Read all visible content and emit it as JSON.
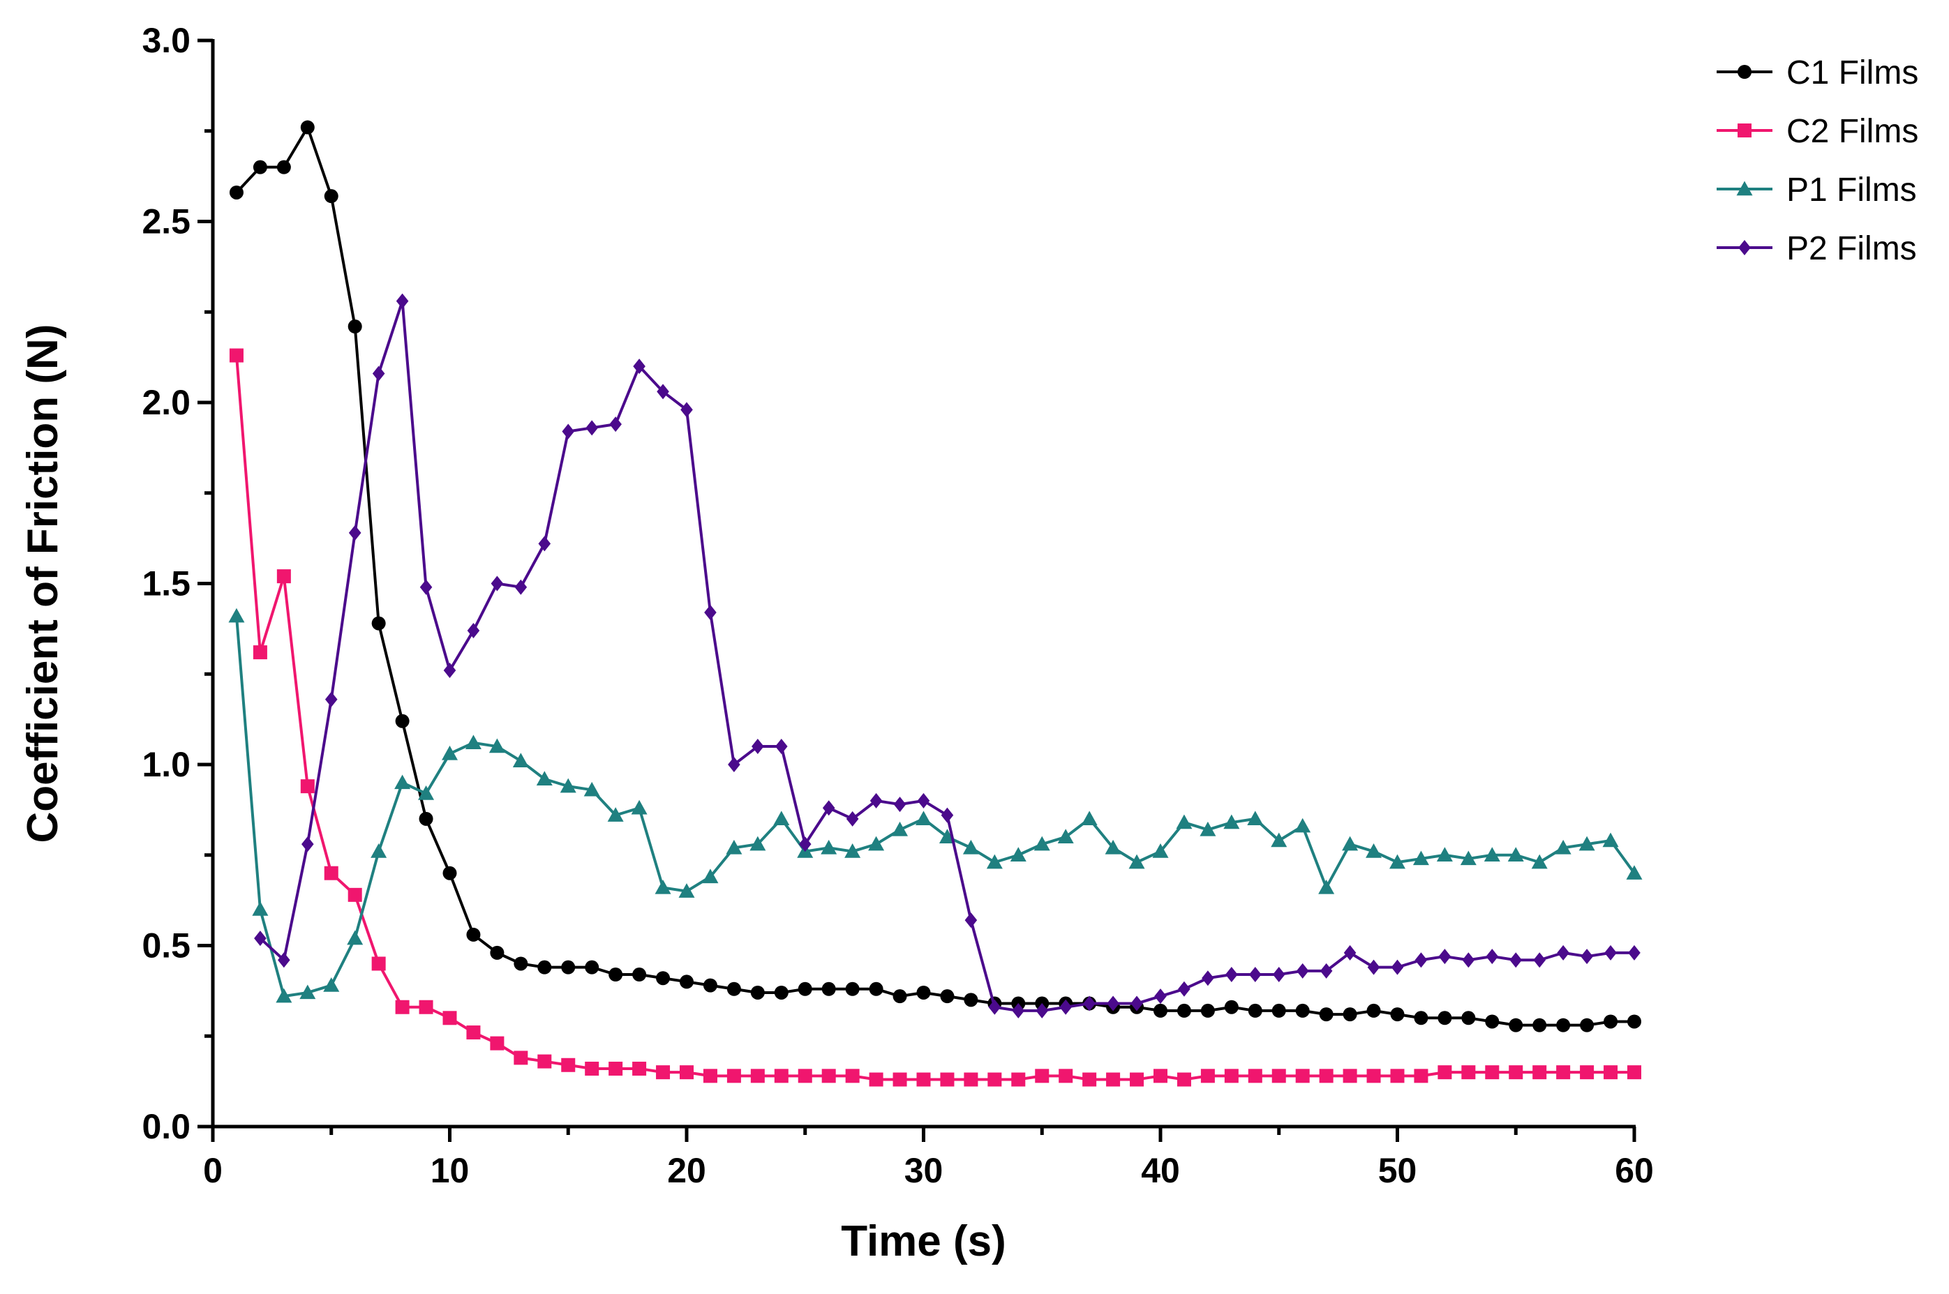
{
  "chart_data": {
    "type": "line",
    "title": "",
    "xlabel": "Time (s)",
    "ylabel": "Coefficient of Friction (N)",
    "xlim": [
      0,
      60
    ],
    "ylim": [
      0,
      3.0
    ],
    "xticks": [
      0,
      10,
      20,
      30,
      40,
      50,
      60
    ],
    "yticks": [
      0.0,
      0.5,
      1.0,
      1.5,
      2.0,
      2.5,
      3.0
    ],
    "xtick_labels": [
      "0",
      "10",
      "20",
      "30",
      "40",
      "50",
      "60"
    ],
    "ytick_labels": [
      "0.0",
      "0.5",
      "1.0",
      "1.5",
      "2.0",
      "2.5",
      "3.0"
    ],
    "grid": false,
    "legend_position": "top-right",
    "x": [
      1,
      2,
      3,
      4,
      5,
      6,
      7,
      8,
      9,
      10,
      11,
      12,
      13,
      14,
      15,
      16,
      17,
      18,
      19,
      20,
      21,
      22,
      23,
      24,
      25,
      26,
      27,
      28,
      29,
      30,
      31,
      32,
      33,
      34,
      35,
      36,
      37,
      38,
      39,
      40,
      41,
      42,
      43,
      44,
      45,
      46,
      47,
      48,
      49,
      50,
      51,
      52,
      53,
      54,
      55,
      56,
      57,
      58,
      59,
      60
    ],
    "series": [
      {
        "name": "C1 Films",
        "color": "#000000",
        "marker": "circle",
        "values": [
          2.58,
          2.65,
          2.65,
          2.76,
          2.57,
          2.21,
          1.39,
          1.12,
          0.85,
          0.7,
          0.53,
          0.48,
          0.45,
          0.44,
          0.44,
          0.44,
          0.42,
          0.42,
          0.41,
          0.4,
          0.39,
          0.38,
          0.37,
          0.37,
          0.38,
          0.38,
          0.38,
          0.38,
          0.36,
          0.37,
          0.36,
          0.35,
          0.34,
          0.34,
          0.34,
          0.34,
          0.34,
          0.33,
          0.33,
          0.32,
          0.32,
          0.32,
          0.33,
          0.32,
          0.32,
          0.32,
          0.31,
          0.31,
          0.32,
          0.31,
          0.3,
          0.3,
          0.3,
          0.29,
          0.28,
          0.28,
          0.28,
          0.28,
          0.29,
          0.29
        ]
      },
      {
        "name": "C2 Films",
        "color": "#f0166e",
        "marker": "square",
        "values": [
          2.13,
          1.31,
          1.52,
          0.94,
          0.7,
          0.64,
          0.45,
          0.33,
          0.33,
          0.3,
          0.26,
          0.23,
          0.19,
          0.18,
          0.17,
          0.16,
          0.16,
          0.16,
          0.15,
          0.15,
          0.14,
          0.14,
          0.14,
          0.14,
          0.14,
          0.14,
          0.14,
          0.13,
          0.13,
          0.13,
          0.13,
          0.13,
          0.13,
          0.13,
          0.14,
          0.14,
          0.13,
          0.13,
          0.13,
          0.14,
          0.13,
          0.14,
          0.14,
          0.14,
          0.14,
          0.14,
          0.14,
          0.14,
          0.14,
          0.14,
          0.14,
          0.15,
          0.15,
          0.15,
          0.15,
          0.15,
          0.15,
          0.15,
          0.15,
          0.15
        ]
      },
      {
        "name": "P1 Films",
        "color": "#1f8080",
        "marker": "triangle",
        "values": [
          1.41,
          0.6,
          0.36,
          0.37,
          0.39,
          0.52,
          0.76,
          0.95,
          0.92,
          1.03,
          1.06,
          1.05,
          1.01,
          0.96,
          0.94,
          0.93,
          0.86,
          0.88,
          0.66,
          0.65,
          0.69,
          0.77,
          0.78,
          0.85,
          0.76,
          0.77,
          0.76,
          0.78,
          0.82,
          0.85,
          0.8,
          0.77,
          0.73,
          0.75,
          0.78,
          0.8,
          0.85,
          0.77,
          0.73,
          0.76,
          0.84,
          0.82,
          0.84,
          0.85,
          0.79,
          0.83,
          0.66,
          0.78,
          0.76,
          0.73,
          0.74,
          0.75,
          0.74,
          0.75,
          0.75,
          0.73,
          0.77,
          0.78,
          0.79,
          0.7
        ]
      },
      {
        "name": "P2 Films",
        "color": "#4b0a8c",
        "marker": "diamond",
        "values": [
          null,
          0.52,
          0.46,
          0.78,
          1.18,
          1.64,
          2.08,
          2.28,
          1.49,
          1.26,
          1.37,
          1.5,
          1.49,
          1.61,
          1.92,
          1.93,
          1.94,
          2.1,
          2.03,
          1.98,
          1.42,
          1.0,
          1.05,
          1.05,
          0.78,
          0.88,
          0.85,
          0.9,
          0.89,
          0.9,
          0.86,
          0.57,
          0.33,
          0.32,
          0.32,
          0.33,
          0.34,
          0.34,
          0.34,
          0.36,
          0.38,
          0.41,
          0.42,
          0.42,
          0.42,
          0.43,
          0.43,
          0.48,
          0.44,
          0.44,
          0.46,
          0.47,
          0.46,
          0.47,
          0.46,
          0.46,
          0.48,
          0.47,
          0.48,
          0.48
        ]
      }
    ]
  }
}
